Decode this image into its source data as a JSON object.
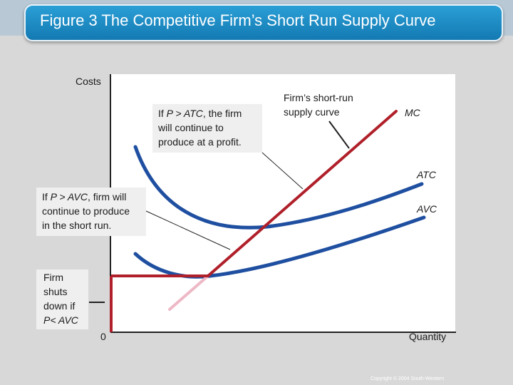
{
  "title": "Figure 3 The Competitive Firm’s Short Run Supply Curve",
  "axes": {
    "y_label": "Costs",
    "x_label": "Quantity",
    "origin_label": "0"
  },
  "curves": {
    "mc": "MC",
    "atc": "ATC",
    "avc": "AVC"
  },
  "annotations": {
    "supply_curve": {
      "line1": "Firm’s short-run",
      "line2": "supply curve"
    },
    "profit": {
      "l1_pre": "If ",
      "l1_em": "P > ATC",
      "l1_post": ", the firm",
      "l2": "will continue to",
      "l3": "produce at a profit."
    },
    "short_run": {
      "l1_pre": "If ",
      "l1_em": "P > AVC",
      "l1_post": ", firm will",
      "l2": "continue to produce",
      "l3": "in the short run."
    },
    "shutdown": {
      "l1": "Firm",
      "l2": "shuts",
      "l3": "down if",
      "l4": "P< AVC"
    }
  },
  "colors": {
    "title_bar": "#1f8fca",
    "cost_curves": "#1f4fa0",
    "supply_curve": "#b0202a",
    "mc_below_avc": "#eeb9c6",
    "background": "#d8d8d8"
  },
  "copyright": "Copyright © 2004 South-Western"
}
